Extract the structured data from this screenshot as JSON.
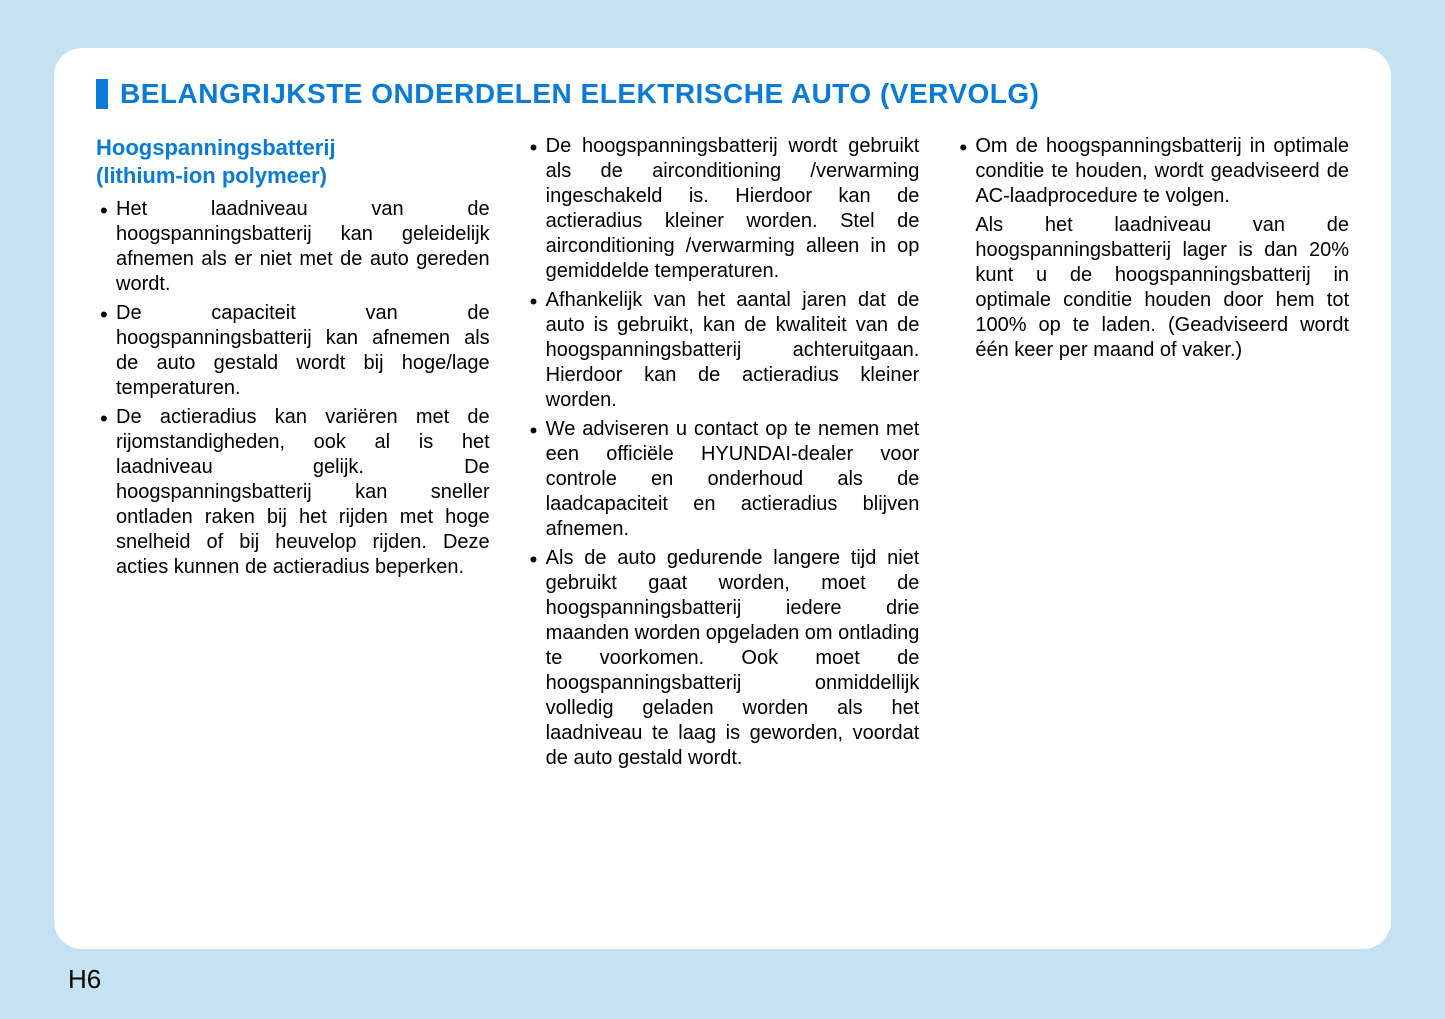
{
  "page": {
    "title": "BELANGRIJKSTE ONDERDELEN ELEKTRISCHE AUTO (VERVOLG)",
    "page_number": "H6",
    "background_color": "#c5e2f2",
    "panel_color": "#ffffff",
    "accent_color": "#0a7bd6",
    "text_color": "#000000",
    "title_fontsize": 28,
    "body_fontsize": 20
  },
  "section": {
    "heading_line1": "Hoogspanningsbatterij",
    "heading_line2": "(lithium-ion polymeer)"
  },
  "col1": {
    "items": [
      "Het laadniveau van de hoogspanningsbatterij kan geleidelijk afnemen als er niet met de auto gereden wordt.",
      "De capaciteit van de hoogspanningsbatterij kan afnemen als de auto gestald wordt bij hoge/lage temperaturen.",
      "De actieradius kan variëren met de rijomstandigheden, ook al is het laadniveau gelijk. De hoogspanningsbatterij kan sneller ontladen raken bij het rijden met hoge snelheid of bij heuvelop rijden. Deze acties kunnen de actieradius beperken."
    ]
  },
  "col2": {
    "items": [
      "De hoogspanningsbatterij wordt gebruikt als de airconditioning /verwarming ingeschakeld is. Hierdoor kan de actieradius kleiner worden. Stel de airconditioning /verwarming alleen in op gemiddelde temperaturen.",
      "Afhankelijk van het aantal jaren dat de auto is gebruikt, kan de kwaliteit van de hoogspanningsbatterij achteruitgaan. Hierdoor kan de actieradius kleiner worden.",
      "We adviseren u contact op te nemen met een officiële HYUNDAI-dealer voor controle en onderhoud als de laadcapaciteit en actieradius blijven afnemen.",
      "Als de auto gedurende langere tijd niet gebruikt gaat worden, moet de hoogspanningsbatterij iedere drie maanden worden opgeladen om ontlading te voorkomen. Ook moet de hoogspanningsbatterij onmiddellijk volledig geladen worden als het laadniveau te laag is geworden, voordat de auto gestald wordt."
    ]
  },
  "col3": {
    "items": [
      "Om de hoogspanningsbatterij in optimale conditie te houden, wordt geadviseerd de AC-laadprocedure te volgen."
    ],
    "trailing": "Als het laadniveau van de hoogspanningsbatterij lager is dan 20% kunt u de hoogspanningsbatterij in optimale conditie houden door hem tot 100% op te laden. (Geadviseerd wordt één keer per maand of vaker.)"
  }
}
